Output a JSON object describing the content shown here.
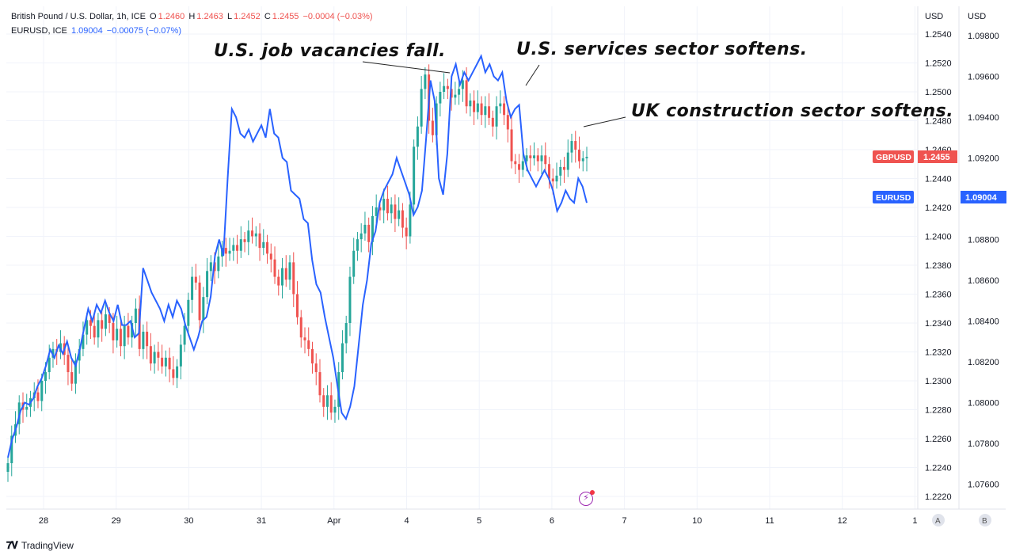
{
  "legend": {
    "gbp_name": "British Pound / U.S. Dollar, 1h, ICE",
    "gbp_o_label": "O",
    "gbp_o": "1.2460",
    "gbp_h_label": "H",
    "gbp_h": "1.2463",
    "gbp_l_label": "L",
    "gbp_l": "1.2452",
    "gbp_c_label": "C",
    "gbp_c": "1.2455",
    "gbp_change": "−0.0004 (−0.03%)",
    "eur_name": "EURUSD, ICE",
    "eur_value": "1.09004",
    "eur_change": "−0.00075 (−0.07%)"
  },
  "annotations": {
    "job": "U.S. job vacancies fall.",
    "services": "U.S. services sector softens.",
    "uk": "UK construction sector softens."
  },
  "axis_a": {
    "unit": "USD",
    "scale_button": "A"
  },
  "axis_b": {
    "unit": "USD",
    "scale_button": "B"
  },
  "brand": {
    "name": "TradingView"
  },
  "colors": {
    "up": "#26a69a",
    "down": "#ef5350",
    "eur_line": "#2962ff",
    "gbp_tag": "#ef5350",
    "eur_tag": "#2962ff"
  },
  "chart_data": {
    "type": "line",
    "x_ticks": [
      "28",
      "29",
      "30",
      "31",
      "Apr",
      "4",
      "5",
      "6",
      "7",
      "10",
      "11",
      "12",
      "1"
    ],
    "y_left": {
      "ylim": [
        1.2215,
        1.255
      ],
      "ticks": [
        "1.2540",
        "1.2520",
        "1.2500",
        "1.2480",
        "1.2460",
        "1.2440",
        "1.2420",
        "1.2400",
        "1.2380",
        "1.2360",
        "1.2340",
        "1.2320",
        "1.2300",
        "1.2280",
        "1.2260",
        "1.2240",
        "1.2220"
      ]
    },
    "y_right": {
      "ylim": [
        1.0747,
        1.099
      ],
      "ticks": [
        "1.09800",
        "1.09600",
        "1.09400",
        "1.09200",
        "1.09000",
        "1.08800",
        "1.08600",
        "1.08400",
        "1.08200",
        "1.08000",
        "1.07800",
        "1.07600"
      ]
    },
    "series": [
      {
        "name": "GBPUSD",
        "kind": "candlestick",
        "last_tag": "1.2455",
        "closes": [
          1.2243,
          1.2262,
          1.227,
          1.2285,
          1.228,
          1.2282,
          1.2288,
          1.2292,
          1.2286,
          1.23,
          1.2306,
          1.2316,
          1.2322,
          1.232,
          1.2326,
          1.2318,
          1.2306,
          1.2298,
          1.2314,
          1.2322,
          1.2332,
          1.2342,
          1.2338,
          1.233,
          1.2342,
          1.2336,
          1.2346,
          1.234,
          1.2328,
          1.2336,
          1.2324,
          1.2338,
          1.233,
          1.234,
          1.235,
          1.2322,
          1.2334,
          1.2324,
          1.2312,
          1.232,
          1.2316,
          1.231,
          1.2316,
          1.2308,
          1.2302,
          1.231,
          1.2325,
          1.2338,
          1.2356,
          1.2372,
          1.2368,
          1.2342,
          1.2358,
          1.2376,
          1.2382,
          1.2376,
          1.2386,
          1.2392,
          1.2388,
          1.239,
          1.2394,
          1.239,
          1.2398,
          1.2396,
          1.2404,
          1.24,
          1.2402,
          1.2392,
          1.2396,
          1.2388,
          1.2384,
          1.2372,
          1.2366,
          1.2378,
          1.237,
          1.2382,
          1.236,
          1.2344,
          1.233,
          1.2328,
          1.2322,
          1.2312,
          1.2306,
          1.229,
          1.2282,
          1.229,
          1.2278,
          1.2282,
          1.2306,
          1.2326,
          1.234,
          1.2372,
          1.239,
          1.2398,
          1.2402,
          1.2408,
          1.2396,
          1.2414,
          1.242,
          1.2418,
          1.2426,
          1.2416,
          1.2422,
          1.2412,
          1.2418,
          1.2406,
          1.24,
          1.2422,
          1.2462,
          1.2476,
          1.2502,
          1.2512,
          1.248,
          1.247,
          1.2492,
          1.25,
          1.2504,
          1.2502,
          1.2496,
          1.2498,
          1.2502,
          1.2508,
          1.249,
          1.2494,
          1.2486,
          1.2492,
          1.2484,
          1.249,
          1.2482,
          1.2476,
          1.249,
          1.2492,
          1.2484,
          1.2474,
          1.2452,
          1.245,
          1.2446,
          1.2452,
          1.2456,
          1.2454,
          1.2456,
          1.2452,
          1.2456,
          1.245,
          1.244,
          1.2438,
          1.2442,
          1.2448,
          1.2446,
          1.2458,
          1.2466,
          1.246,
          1.2452,
          1.2454,
          1.2455
        ]
      },
      {
        "name": "EURUSD",
        "kind": "line",
        "last_tag": "1.09004",
        "values": [
          1.0773,
          1.0782,
          1.0788,
          1.0796,
          1.08,
          1.0799,
          1.0802,
          1.0808,
          1.0812,
          1.0818,
          1.0826,
          1.0822,
          1.0828,
          1.0824,
          1.083,
          1.0822,
          1.0818,
          1.0826,
          1.0836,
          1.0846,
          1.084,
          1.0848,
          1.0844,
          1.085,
          1.0844,
          1.084,
          1.0848,
          1.0838,
          1.0838,
          1.084,
          1.0832,
          1.0834,
          1.0866,
          1.086,
          1.0854,
          1.085,
          1.0846,
          1.084,
          1.0848,
          1.0842,
          1.085,
          1.0846,
          1.0838,
          1.0832,
          1.0826,
          1.0832,
          1.084,
          1.0842,
          1.0852,
          1.0872,
          1.088,
          1.0872,
          1.091,
          1.0944,
          1.094,
          1.0932,
          1.093,
          1.0934,
          1.0928,
          1.0932,
          1.0936,
          1.093,
          1.0944,
          1.0932,
          1.093,
          1.092,
          1.0918,
          1.0904,
          1.0902,
          1.09,
          1.089,
          1.0888,
          1.087,
          1.0858,
          1.0854,
          1.0842,
          1.0832,
          1.0822,
          1.0808,
          1.0795,
          1.0792,
          1.0798,
          1.0808,
          1.0828,
          1.0848,
          1.086,
          1.0878,
          1.0884,
          1.0898,
          1.0904,
          1.0908,
          1.0912,
          1.092,
          1.0914,
          1.0908,
          1.0902,
          1.0892,
          1.0896,
          1.0904,
          1.093,
          1.0958,
          1.0948,
          1.091,
          1.0902,
          1.0922,
          1.096,
          1.0966,
          1.0956,
          1.0962,
          1.0958,
          1.0962,
          1.0966,
          1.097,
          1.0962,
          1.0966,
          1.096,
          1.0958,
          1.0962,
          1.0948,
          1.094,
          1.0944,
          1.0946,
          1.0922,
          1.0914,
          1.091,
          1.0906,
          1.091,
          1.0914,
          1.091,
          1.0904,
          1.0894,
          1.0898,
          1.0904,
          1.09,
          1.0898,
          1.091,
          1.0906,
          1.0898
        ]
      }
    ]
  }
}
